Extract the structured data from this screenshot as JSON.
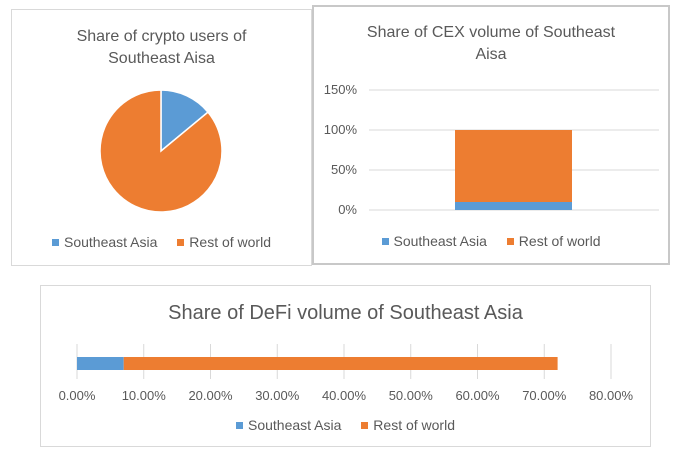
{
  "colors": {
    "southeast_asia": "#5b9bd5",
    "rest_of_world": "#ed7d31",
    "grid": "#d9d9d9"
  },
  "chart_data": [
    {
      "type": "pie",
      "title": "Share of crypto users of Southeast Aisa",
      "categories": [
        "Southeast Asia",
        "Rest of world"
      ],
      "values": [
        14,
        86
      ],
      "legend": "bottom"
    },
    {
      "type": "bar",
      "stacked": true,
      "title": "Share of CEX volume of Southeast Aisa",
      "categories": [
        ""
      ],
      "series": [
        {
          "name": "Southeast Asia",
          "values": [
            10
          ]
        },
        {
          "name": "Rest of world",
          "values": [
            90
          ]
        }
      ],
      "yticks": [
        "0%",
        "50%",
        "100%",
        "150%"
      ],
      "ylim": [
        0,
        150
      ],
      "grid": true,
      "legend": "bottom"
    },
    {
      "type": "bar",
      "stacked": true,
      "orientation": "horizontal",
      "title": "Share of DeFi volume of Southeast Asia",
      "categories": [
        ""
      ],
      "series": [
        {
          "name": "Southeast Asia",
          "values": [
            7
          ]
        },
        {
          "name": "Rest of world",
          "values": [
            65
          ]
        }
      ],
      "xticks": [
        "0.00%",
        "10.00%",
        "20.00%",
        "30.00%",
        "40.00%",
        "50.00%",
        "60.00%",
        "70.00%",
        "80.00%"
      ],
      "xlim": [
        0,
        80
      ],
      "grid": true,
      "legend": "bottom"
    }
  ]
}
